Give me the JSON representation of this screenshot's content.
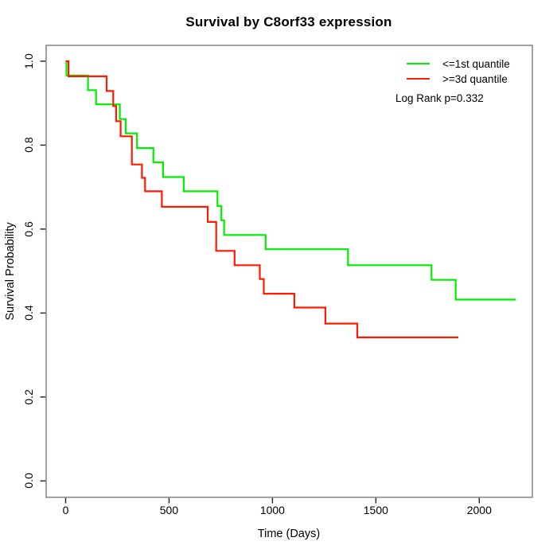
{
  "chart_data": {
    "type": "line",
    "curve_style": "step-after",
    "title": "Survival by C8orf33 expression",
    "xlabel": "Time (Days)",
    "ylabel": "Survival Probability",
    "xlim": [
      0,
      2200
    ],
    "ylim": [
      0.0,
      1.0
    ],
    "grid": false,
    "legend_position": "top-right",
    "annotation": "Log Rank p=0.332",
    "xticks": [
      {
        "v": 0,
        "label": "0"
      },
      {
        "v": 500,
        "label": "500"
      },
      {
        "v": 1000,
        "label": "1000"
      },
      {
        "v": 1500,
        "label": "1500"
      },
      {
        "v": 2000,
        "label": "2000"
      }
    ],
    "yticks": [
      {
        "v": 0.0,
        "label": "0.0"
      },
      {
        "v": 0.2,
        "label": "0.2"
      },
      {
        "v": 0.4,
        "label": "0.4"
      },
      {
        "v": 0.6,
        "label": "0.6"
      },
      {
        "v": 0.8,
        "label": "0.8"
      },
      {
        "v": 1.0,
        "label": "1.0"
      }
    ],
    "series": [
      {
        "name": "<=1st quantile",
        "color": "#00ee00",
        "start": [
          0,
          1.0
        ],
        "steps": [
          [
            4,
            0.966
          ],
          [
            108,
            0.931
          ],
          [
            147,
            0.897
          ],
          [
            262,
            0.862
          ],
          [
            291,
            0.828
          ],
          [
            345,
            0.793
          ],
          [
            424,
            0.759
          ],
          [
            471,
            0.724
          ],
          [
            571,
            0.69
          ],
          [
            734,
            0.655
          ],
          [
            753,
            0.621
          ],
          [
            766,
            0.586
          ],
          [
            967,
            0.552
          ],
          [
            1365,
            0.514
          ],
          [
            1769,
            0.479
          ],
          [
            1886,
            0.432
          ]
        ],
        "end_time": 2177
      },
      {
        "name": ">=3d quantile",
        "color": "#ff1a00",
        "start": [
          0,
          1.0
        ],
        "steps": [
          [
            14,
            0.964
          ],
          [
            198,
            0.929
          ],
          [
            230,
            0.893
          ],
          [
            244,
            0.857
          ],
          [
            266,
            0.821
          ],
          [
            320,
            0.754
          ],
          [
            369,
            0.722
          ],
          [
            384,
            0.69
          ],
          [
            465,
            0.653
          ],
          [
            687,
            0.617
          ],
          [
            728,
            0.548
          ],
          [
            817,
            0.514
          ],
          [
            939,
            0.481
          ],
          [
            958,
            0.446
          ],
          [
            1106,
            0.413
          ],
          [
            1256,
            0.375
          ],
          [
            1410,
            0.342
          ]
        ],
        "end_time": 1899
      }
    ]
  }
}
